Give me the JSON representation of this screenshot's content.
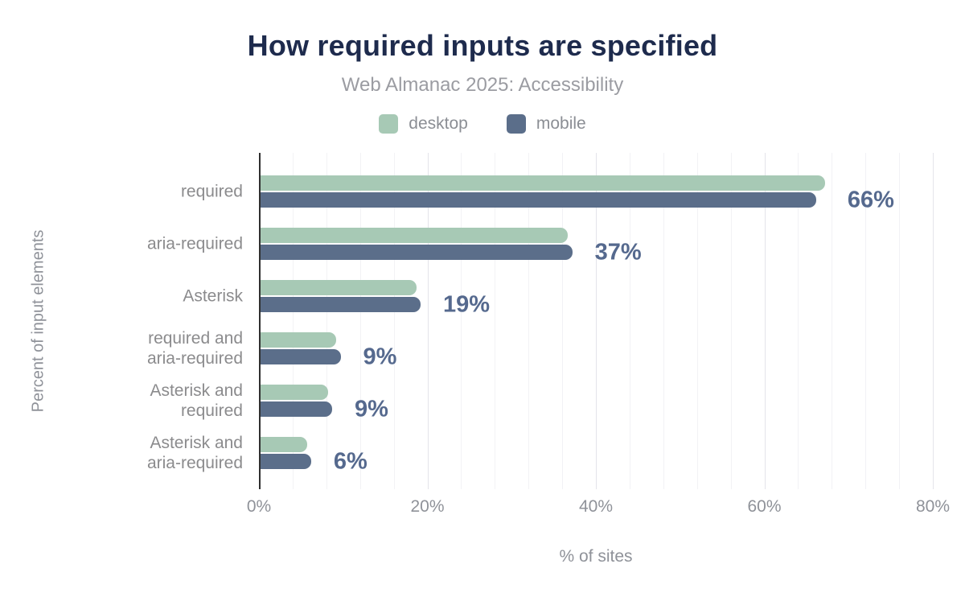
{
  "header": {
    "title": "How required inputs are specified",
    "subtitle": "Web Almanac 2025: Accessibility"
  },
  "chart_data": {
    "type": "bar",
    "orientation": "horizontal",
    "title": "How required inputs are specified",
    "subtitle": "Web Almanac 2025: Accessibility",
    "categories": [
      "required",
      "aria-required",
      "Asterisk",
      "required and aria-required",
      "Asterisk and required",
      "Asterisk and aria-required"
    ],
    "category_lines": [
      [
        "required"
      ],
      [
        "aria-required"
      ],
      [
        "Asterisk"
      ],
      [
        "required and",
        "aria-required"
      ],
      [
        "Asterisk and",
        "required"
      ],
      [
        "Asterisk and",
        "aria-required"
      ]
    ],
    "series": [
      {
        "name": "desktop",
        "color": "#a7c9b5",
        "values": [
          67,
          36.5,
          18.5,
          9,
          8,
          5.5
        ]
      },
      {
        "name": "mobile",
        "color": "#5b6e8a",
        "values": [
          66,
          37,
          19,
          9.5,
          8.5,
          6
        ]
      }
    ],
    "value_labels": [
      "66%",
      "37%",
      "19%",
      "9%",
      "9%",
      "6%"
    ],
    "xlabel": "% of sites",
    "ylabel": "Percent of input elements",
    "xlim": [
      0,
      80
    ],
    "xticks": [
      "0%",
      "20%",
      "40%",
      "60%",
      "80%"
    ],
    "xtick_values": [
      0,
      20,
      40,
      60,
      80
    ],
    "minor_grid_step": 4,
    "major_grid_step": 20,
    "grid": true,
    "legend_position": "top"
  },
  "legend": [
    {
      "label": "desktop",
      "color": "#a7c9b5"
    },
    {
      "label": "mobile",
      "color": "#5b6e8a"
    }
  ],
  "colors": {
    "title": "#1e2b4d",
    "subtitle": "#9b9ca2",
    "axis_text": "#8f9299",
    "category_text": "#8b8b8d",
    "value_label": "#55698e",
    "grid_minor": "#f2f2f5",
    "grid_major": "#e4e4ea",
    "axis_line": "#2f2f2f",
    "background": "#ffffff",
    "desktop_bar": "#a7c9b5",
    "mobile_bar": "#5b6e8a"
  }
}
